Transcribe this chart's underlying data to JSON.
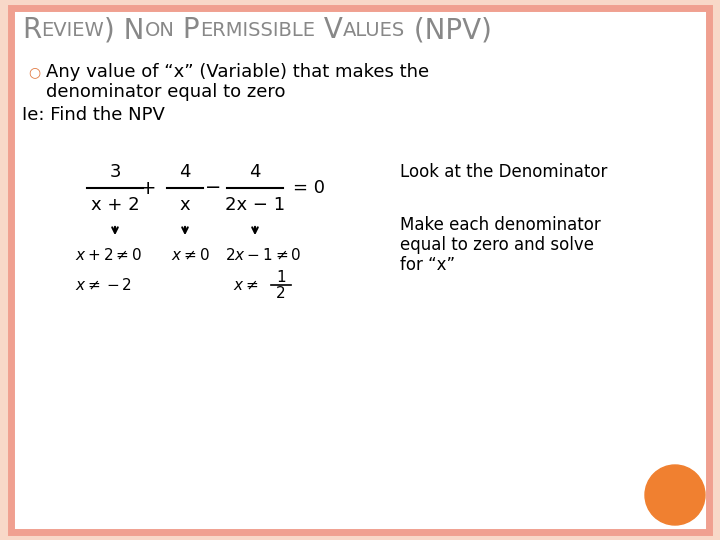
{
  "title_parts": [
    {
      "text": "R",
      "big": true
    },
    {
      "text": "EVIEW",
      "big": false
    },
    {
      "text": ") N",
      "big": true
    },
    {
      "text": "ON",
      "big": false
    },
    {
      "text": " P",
      "big": true
    },
    {
      "text": "ERMISSIBLE",
      "big": false
    },
    {
      "text": " V",
      "big": true
    },
    {
      "text": "ALUES",
      "big": false
    },
    {
      "text": " (NPV)",
      "big": true
    }
  ],
  "bullet_text_line1": "Any value of “x” (Variable) that makes the",
  "bullet_text_line2": "denominator equal to zero",
  "ie_text": "Ie: Find the NPV",
  "look_text": "Look at the Denominator",
  "make_text_line1": "Make each denominator",
  "make_text_line2": "equal to zero and solve",
  "make_text_line3": "for “x”",
  "background_color": "#FFFFFF",
  "border_color": "#F0A090",
  "title_color": "#888888",
  "bullet_color": "#E07840",
  "text_color": "#000000",
  "circle_color": "#CC0000",
  "orange_circle_color": "#F08030",
  "slide_bg": "#F8D8C8"
}
